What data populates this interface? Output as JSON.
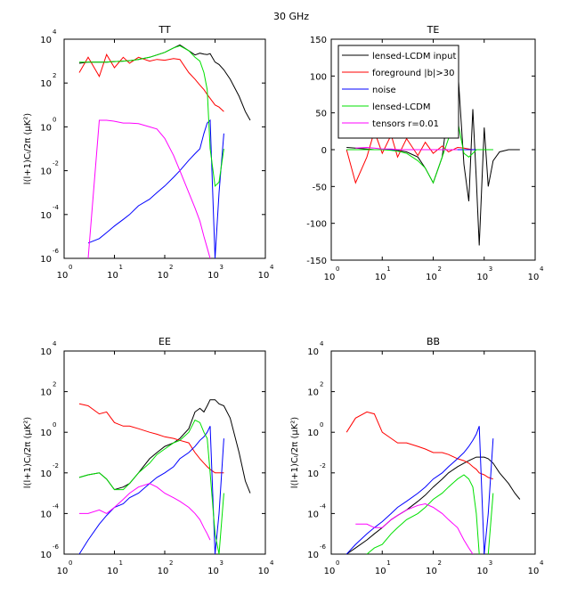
{
  "title": "30 GHz",
  "chart_data": [
    {
      "type": "line",
      "title": "TT",
      "ylabel": "l(l+1)Cₗ/2π (μK²)",
      "logx": true,
      "logy": true,
      "x": [
        2,
        3,
        5,
        7,
        10,
        15,
        20,
        30,
        50,
        70,
        100,
        150,
        200,
        300,
        400,
        500,
        600,
        700,
        800,
        1000,
        1200,
        1500,
        2000,
        3000,
        4000,
        5000
      ],
      "xlim": [
        1,
        10000
      ],
      "xticks": [
        {
          "value": 1,
          "label": "10",
          "sup": "0"
        },
        {
          "value": 10,
          "label": "10",
          "sup": "1"
        },
        {
          "value": 100,
          "label": "10",
          "sup": "2"
        },
        {
          "value": 1000,
          "label": "10",
          "sup": "3"
        },
        {
          "value": 10000,
          "label": "10",
          "sup": "4"
        }
      ],
      "ylim": [
        1e-06,
        10000
      ],
      "yticks": [
        {
          "value": 1e-06,
          "label": "10",
          "sup": "-6"
        },
        {
          "value": 0.0001,
          "label": "10",
          "sup": "-4"
        },
        {
          "value": 0.01,
          "label": "10",
          "sup": "-2"
        },
        {
          "value": 1,
          "label": "10",
          "sup": "0"
        },
        {
          "value": 100,
          "label": "10",
          "sup": "2"
        },
        {
          "value": 10000,
          "label": "10",
          "sup": "4"
        }
      ],
      "series": [
        {
          "name": "lensed-LCDM input",
          "color": "#000000",
          "values": [
            800,
            900,
            900,
            900,
            950,
            1000,
            1050,
            1200,
            1500,
            1900,
            2500,
            4000,
            5500,
            3000,
            1900,
            2300,
            2100,
            2000,
            2200,
            900,
            700,
            400,
            150,
            25,
            5,
            2
          ]
        },
        {
          "name": "foreground |b|>30",
          "color": "#ff0000",
          "values": [
            300,
            1500,
            200,
            2000,
            500,
            1500,
            800,
            1500,
            1000,
            1200,
            1100,
            1300,
            1200,
            300,
            150,
            80,
            50,
            30,
            20,
            10,
            8,
            5,
            null,
            null,
            null,
            null
          ]
        },
        {
          "name": "noise",
          "color": "#0000ff",
          "values": [
            null,
            5e-06,
            8e-06,
            1.5e-05,
            3e-05,
            6e-05,
            0.0001,
            0.00025,
            0.0005,
            0.001,
            0.002,
            0.005,
            0.01,
            0.03,
            0.06,
            0.1,
            0.5,
            1.5,
            2,
            1e-06,
            0.001,
            0.5,
            null,
            null,
            null,
            null
          ]
        },
        {
          "name": "lensed-LCDM",
          "color": "#00e000",
          "values": [
            900,
            900,
            900,
            900,
            950,
            1000,
            1050,
            1200,
            1500,
            1900,
            2500,
            4000,
            5000,
            3000,
            1500,
            1000,
            300,
            50,
            0.1,
            0.002,
            0.003,
            0.1,
            null,
            null,
            null,
            null
          ]
        },
        {
          "name": "tensors r=0.01",
          "color": "#ff00ff",
          "values": [
            null,
            1e-06,
            2,
            2,
            1.8,
            1.5,
            1.5,
            1.4,
            1,
            0.8,
            0.3,
            0.05,
            0.01,
            0.001,
            0.0002,
            5e-05,
            1e-05,
            3e-06,
            1e-06,
            null,
            null,
            null,
            null,
            null,
            null,
            null
          ]
        }
      ]
    },
    {
      "type": "line",
      "title": "TE",
      "logx": true,
      "logy": false,
      "legend": "upper left",
      "x": [
        2,
        3,
        5,
        7,
        10,
        15,
        20,
        30,
        50,
        70,
        100,
        150,
        200,
        300,
        400,
        500,
        600,
        700,
        800,
        1000,
        1200,
        1500,
        2000,
        3000,
        4000,
        5000
      ],
      "xlim": [
        1,
        10000
      ],
      "xticks": [
        {
          "value": 1,
          "label": "10",
          "sup": "0"
        },
        {
          "value": 10,
          "label": "10",
          "sup": "1"
        },
        {
          "value": 100,
          "label": "10",
          "sup": "2"
        },
        {
          "value": 1000,
          "label": "10",
          "sup": "3"
        },
        {
          "value": 10000,
          "label": "10",
          "sup": "4"
        }
      ],
      "ylim": [
        -150,
        150
      ],
      "yticks": [
        -150,
        -100,
        -50,
        0,
        50,
        100,
        150
      ],
      "series": [
        {
          "name": "lensed-LCDM input",
          "color": "#000000",
          "values": [
            3,
            2,
            1,
            0,
            0,
            0,
            -1,
            -3,
            -10,
            -25,
            -45,
            -10,
            60,
            115,
            -20,
            -70,
            55,
            -40,
            -130,
            30,
            -50,
            -15,
            -3,
            0,
            0,
            0
          ]
        },
        {
          "name": "foreground |b|>30",
          "color": "#ff0000",
          "values": [
            0,
            -45,
            -10,
            25,
            -5,
            20,
            -10,
            15,
            -8,
            10,
            -5,
            5,
            -3,
            3,
            2,
            1,
            0,
            null,
            null,
            null,
            null,
            null,
            null,
            null,
            null,
            null
          ]
        },
        {
          "name": "noise",
          "color": "#0000ff",
          "values": [
            0,
            0,
            0,
            0,
            0,
            0,
            0,
            0,
            0,
            0,
            0,
            0,
            0,
            0,
            0,
            0,
            0,
            0,
            0,
            0,
            0,
            0,
            null,
            null,
            null,
            null
          ]
        },
        {
          "name": "lensed-LCDM",
          "color": "#00e000",
          "values": [
            0,
            0,
            0,
            0,
            0,
            -1,
            -2,
            -5,
            -15,
            -25,
            -45,
            -10,
            15,
            40,
            -5,
            -10,
            -5,
            0,
            0,
            0,
            0,
            0,
            null,
            null,
            null,
            null
          ]
        },
        {
          "name": "tensors r=0.01",
          "color": "#ff00ff",
          "values": [
            null,
            2,
            3,
            2,
            1,
            1,
            0,
            0,
            0,
            0,
            0,
            0,
            0,
            0,
            null,
            null,
            null,
            null,
            null,
            null,
            null,
            null,
            null,
            null,
            null,
            null
          ]
        }
      ]
    },
    {
      "type": "line",
      "title": "EE",
      "ylabel": "l(l+1)Cₗ/2π (μK²)",
      "logx": true,
      "logy": true,
      "x": [
        2,
        3,
        5,
        7,
        10,
        15,
        20,
        30,
        50,
        70,
        100,
        150,
        200,
        300,
        400,
        500,
        600,
        700,
        800,
        1000,
        1200,
        1500,
        2000,
        3000,
        4000,
        5000
      ],
      "xlim": [
        1,
        10000
      ],
      "xticks": [
        {
          "value": 1,
          "label": "10",
          "sup": "0"
        },
        {
          "value": 10,
          "label": "10",
          "sup": "1"
        },
        {
          "value": 100,
          "label": "10",
          "sup": "2"
        },
        {
          "value": 1000,
          "label": "10",
          "sup": "3"
        },
        {
          "value": 10000,
          "label": "10",
          "sup": "4"
        }
      ],
      "ylim": [
        1e-06,
        10000
      ],
      "yticks": [
        {
          "value": 1e-06,
          "label": "10",
          "sup": "-6"
        },
        {
          "value": 0.0001,
          "label": "10",
          "sup": "-4"
        },
        {
          "value": 0.01,
          "label": "10",
          "sup": "-2"
        },
        {
          "value": 1,
          "label": "10",
          "sup": "0"
        },
        {
          "value": 100,
          "label": "10",
          "sup": "2"
        },
        {
          "value": 10000,
          "label": "10",
          "sup": "4"
        }
      ],
      "series": [
        {
          "name": "lensed-LCDM input",
          "color": "#000000",
          "values": [
            0.006,
            0.008,
            0.01,
            0.005,
            0.0015,
            0.002,
            0.003,
            0.01,
            0.05,
            0.1,
            0.2,
            0.3,
            0.5,
            1.5,
            10,
            15,
            10,
            20,
            40,
            40,
            25,
            20,
            5,
            0.1,
            0.004,
            0.001
          ]
        },
        {
          "name": "foreground |b|>30",
          "color": "#ff0000",
          "values": [
            25,
            20,
            8,
            10,
            3,
            2,
            2,
            1.5,
            1,
            0.8,
            0.6,
            0.5,
            0.4,
            0.3,
            0.1,
            0.05,
            0.03,
            0.02,
            0.015,
            0.01,
            0.01,
            0.01,
            null,
            null,
            null,
            null
          ]
        },
        {
          "name": "noise",
          "color": "#0000ff",
          "values": [
            1e-06,
            5e-06,
            3e-05,
            8e-05,
            0.0002,
            0.0003,
            0.0006,
            0.001,
            0.003,
            0.006,
            0.01,
            0.02,
            0.05,
            0.1,
            0.2,
            0.4,
            0.6,
            1,
            2,
            1e-06,
            0.0001,
            0.5,
            null,
            null,
            null,
            null
          ]
        },
        {
          "name": "lensed-LCDM",
          "color": "#00e000",
          "values": [
            0.006,
            0.008,
            0.01,
            0.005,
            0.0015,
            0.0015,
            0.003,
            0.01,
            0.03,
            0.08,
            0.15,
            0.3,
            0.4,
            1,
            4,
            3,
            1,
            0.5,
            0.01,
            1e-05,
            1e-06,
            0.001,
            null,
            null,
            null,
            null
          ]
        },
        {
          "name": "tensors r=0.01",
          "color": "#ff00ff",
          "values": [
            0.0001,
            0.0001,
            0.00015,
            0.0001,
            0.0002,
            0.0005,
            0.001,
            0.002,
            0.003,
            0.002,
            0.001,
            0.0006,
            0.0004,
            0.0002,
            0.0001,
            5e-05,
            2e-05,
            1e-05,
            5e-06,
            null,
            null,
            null,
            null,
            null,
            null,
            null
          ]
        }
      ]
    },
    {
      "type": "line",
      "title": "BB",
      "ylabel": "l(l+1)Cₗ/2π (μK²)",
      "logx": true,
      "logy": true,
      "x": [
        2,
        3,
        5,
        7,
        10,
        15,
        20,
        30,
        50,
        70,
        100,
        150,
        200,
        300,
        400,
        500,
        600,
        700,
        800,
        1000,
        1200,
        1500,
        2000,
        3000,
        4000,
        5000
      ],
      "xlim": [
        1,
        10000
      ],
      "xticks": [
        {
          "value": 1,
          "label": "10",
          "sup": "0"
        },
        {
          "value": 10,
          "label": "10",
          "sup": "1"
        },
        {
          "value": 100,
          "label": "10",
          "sup": "2"
        },
        {
          "value": 1000,
          "label": "10",
          "sup": "3"
        },
        {
          "value": 10000,
          "label": "10",
          "sup": "4"
        }
      ],
      "ylim": [
        1e-06,
        10000
      ],
      "yticks": [
        {
          "value": 1e-06,
          "label": "10",
          "sup": "-6"
        },
        {
          "value": 0.0001,
          "label": "10",
          "sup": "-4"
        },
        {
          "value": 0.01,
          "label": "10",
          "sup": "-2"
        },
        {
          "value": 1,
          "label": "10",
          "sup": "0"
        },
        {
          "value": 100,
          "label": "10",
          "sup": "2"
        },
        {
          "value": 10000,
          "label": "10",
          "sup": "4"
        }
      ],
      "series": [
        {
          "name": "lensed-LCDM input",
          "color": "#000000",
          "values": [
            1e-06,
            2e-06,
            5e-06,
            1e-05,
            2e-05,
            5e-05,
            8e-05,
            0.00015,
            0.0004,
            0.0008,
            0.002,
            0.005,
            0.01,
            0.02,
            0.03,
            0.04,
            0.05,
            0.06,
            0.06,
            0.06,
            0.05,
            0.03,
            0.01,
            0.003,
            0.001,
            0.0005
          ]
        },
        {
          "name": "foreground |b|>30",
          "color": "#ff0000",
          "values": [
            1,
            5,
            10,
            8,
            1,
            0.5,
            0.3,
            0.3,
            0.2,
            0.15,
            0.1,
            0.1,
            0.08,
            0.05,
            0.04,
            0.03,
            0.02,
            0.015,
            0.01,
            0.008,
            0.006,
            0.005,
            null,
            null,
            null,
            null
          ]
        },
        {
          "name": "noise",
          "color": "#0000ff",
          "values": [
            1e-06,
            3e-06,
            1e-05,
            2e-05,
            4e-05,
            0.0001,
            0.0002,
            0.0004,
            0.001,
            0.002,
            0.005,
            0.01,
            0.02,
            0.05,
            0.1,
            0.2,
            0.4,
            0.8,
            2,
            1e-06,
            0.0001,
            0.5,
            null,
            null,
            null,
            null
          ]
        },
        {
          "name": "lensed-LCDM",
          "color": "#00e000",
          "values": [
            null,
            null,
            1e-06,
            2e-06,
            3e-06,
            1e-05,
            2e-05,
            5e-05,
            0.0001,
            0.0002,
            0.0005,
            0.001,
            0.002,
            0.005,
            0.008,
            0.005,
            0.002,
            0.0001,
            1e-06,
            null,
            1e-06,
            0.001,
            null,
            null,
            null,
            null
          ]
        },
        {
          "name": "tensors r=0.01",
          "color": "#ff00ff",
          "values": [
            null,
            3e-05,
            3e-05,
            2e-05,
            2e-05,
            5e-05,
            8e-05,
            0.00015,
            0.00025,
            0.0003,
            0.0002,
            0.0001,
            5e-05,
            2e-05,
            5e-06,
            2e-06,
            1e-06,
            null,
            null,
            null,
            null,
            null,
            null,
            null,
            null,
            null
          ]
        }
      ]
    }
  ]
}
